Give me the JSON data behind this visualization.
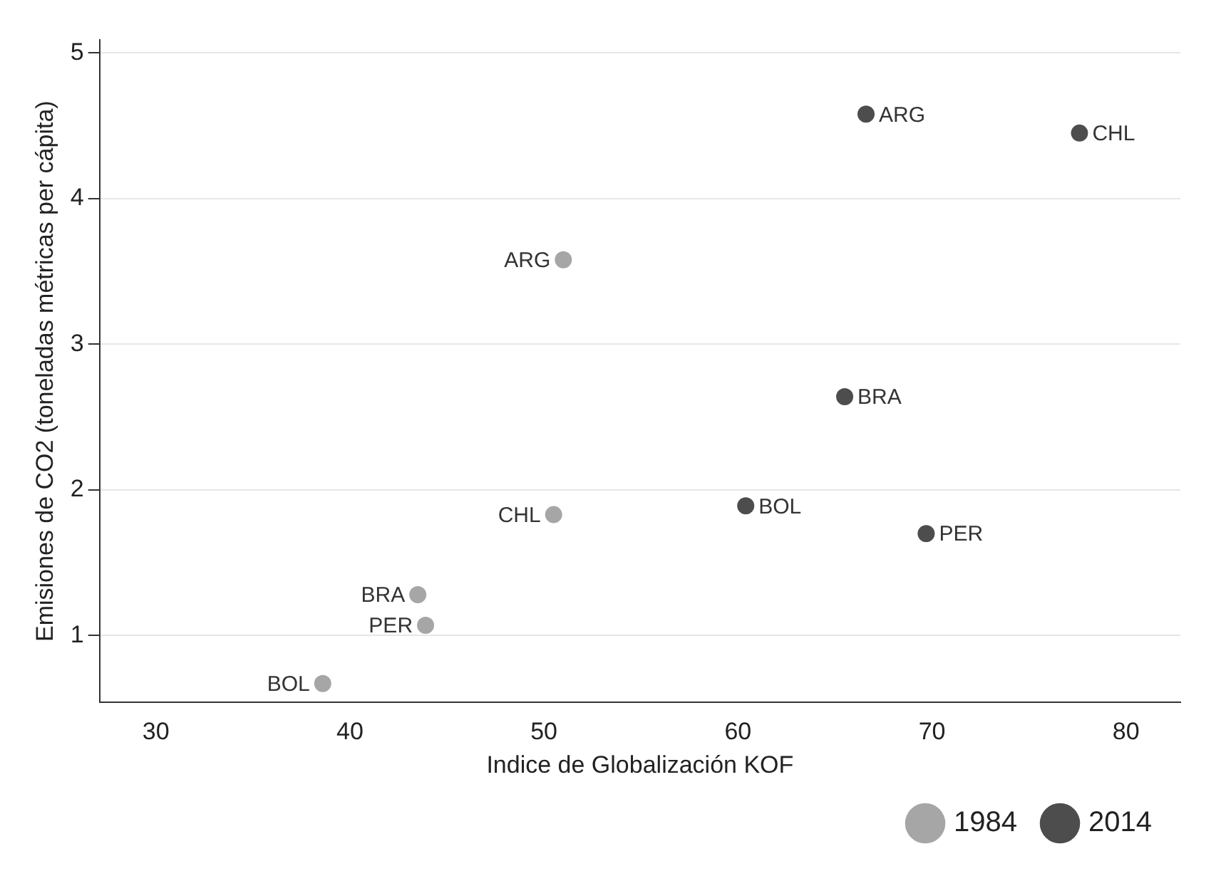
{
  "chart_data": {
    "type": "scatter",
    "xlabel": "Indice de Globalización KOF",
    "ylabel": "Emisiones de CO2 (toneladas métricas per cápita)",
    "series": [
      {
        "name": "1984",
        "color": "#a6a6a6",
        "x": [
          51.0,
          50.5,
          43.5,
          43.9,
          38.6
        ],
        "values": [
          3.58,
          1.83,
          1.28,
          1.07,
          0.67
        ]
      },
      {
        "name": "2014",
        "color": "#4d4d4d",
        "x": [
          66.6,
          77.6,
          65.5,
          60.4,
          69.7
        ],
        "values": [
          4.58,
          4.45,
          2.64,
          1.89,
          1.7
        ]
      }
    ],
    "annotations": [
      {
        "text": "ARG",
        "x": 51.0,
        "y": 3.58
      },
      {
        "text": "CHL",
        "x": 50.5,
        "y": 1.83
      },
      {
        "text": "BRA",
        "x": 43.5,
        "y": 1.28
      },
      {
        "text": "PER",
        "x": 43.9,
        "y": 1.07
      },
      {
        "text": "BOL",
        "x": 38.6,
        "y": 0.67
      },
      {
        "text": "ARG",
        "x": 66.6,
        "y": 4.58
      },
      {
        "text": "CHL",
        "x": 77.6,
        "y": 4.45
      },
      {
        "text": "BRA",
        "x": 65.5,
        "y": 2.64
      },
      {
        "text": "BOL",
        "x": 60.4,
        "y": 1.89
      },
      {
        "text": "PER",
        "x": 69.7,
        "y": 1.7
      }
    ],
    "xlim": [
      27.1,
      82.8
    ],
    "xticks": [
      30,
      40,
      50,
      60,
      70,
      80
    ],
    "ylim": [
      0.54,
      5.09
    ],
    "yticks": [
      1,
      2,
      3,
      4,
      5
    ],
    "grid": "y",
    "legend": "bottom right",
    "marker": "circle"
  }
}
